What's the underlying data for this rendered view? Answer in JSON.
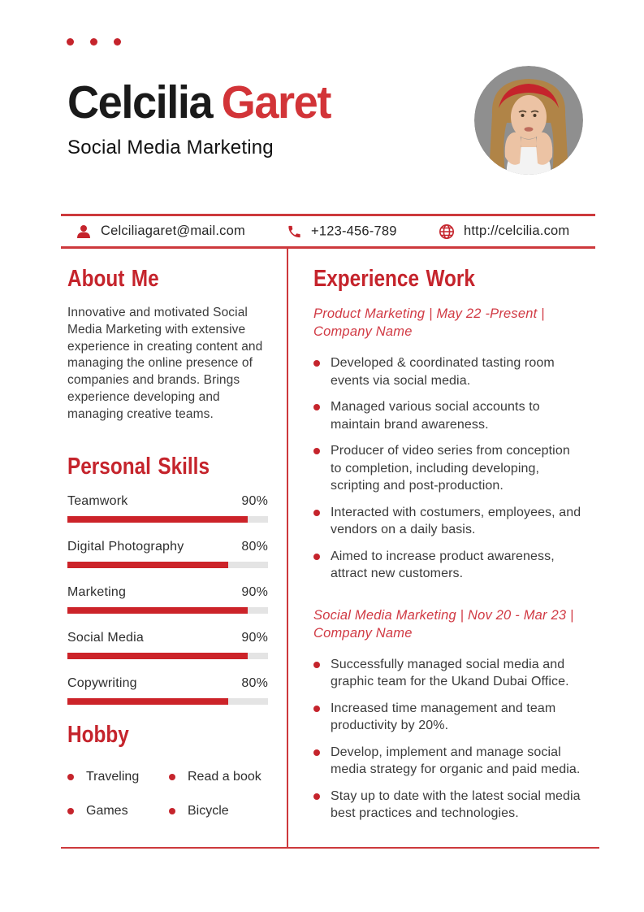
{
  "colors": {
    "accent_red": "#c5242c",
    "name_red": "#d23438",
    "line_red": "#cd393c",
    "bar_red": "#cc2329",
    "bar_track": "#e4e4e4",
    "text_dark": "#3b3b3b"
  },
  "header": {
    "name_first": "Celcilia",
    "name_last": "Garet",
    "subtitle": "Social Media Marketing"
  },
  "icons": {
    "contact": [
      "person-icon",
      "phone-icon",
      "globe-icon"
    ],
    "list_bullet": "red-dot",
    "decor": "three-red-dots",
    "photo": "circular-portrait-photo"
  },
  "contact": {
    "email": "Celciliagaret@mail.com",
    "phone": "+123-456-789",
    "website": "http://celcilia.com"
  },
  "about": {
    "title": "About Me",
    "text": "Innovative and motivated Social Media Marketing with extensive experience in creating content and managing the online presence of companies and brands. Brings experience developing and managing creative teams."
  },
  "skills": {
    "title": "Personal Skills",
    "items": [
      {
        "label": "Teamwork",
        "percent": "90%",
        "value": 90
      },
      {
        "label": "Digital Photography",
        "percent": "80%",
        "value": 80
      },
      {
        "label": "Marketing",
        "percent": "90%",
        "value": 90
      },
      {
        "label": "Social Media",
        "percent": "90%",
        "value": 90
      },
      {
        "label": "Copywriting",
        "percent": "80%",
        "value": 80
      }
    ]
  },
  "hobby": {
    "title": "Hobby",
    "items": [
      "Traveling",
      "Read a book",
      "Games",
      "Bicycle"
    ]
  },
  "experience": {
    "title": "Experience Work",
    "jobs": [
      {
        "meta": "Product Marketing | May 22 -Present | Company Name",
        "bullets": [
          "Developed & coordinated tasting room events via social media.",
          "Managed various social accounts to maintain brand awareness.",
          "Producer of video series from conception to completion, including developing, scripting and post-production.",
          "Interacted with costumers, employees, and vendors on a daily basis.",
          "Aimed to increase product awareness, attract new customers."
        ]
      },
      {
        "meta": "Social Media Marketing | Nov 20 - Mar 23 | Company Name",
        "bullets": [
          "Successfully managed social media and graphic team for the Ukand Dubai Office.",
          "Increased time management and team productivity by 20%.",
          "Develop, implement and manage social media strategy for organic and paid media.",
          "Stay up to date with the latest social media best practices and technologies."
        ]
      }
    ]
  }
}
